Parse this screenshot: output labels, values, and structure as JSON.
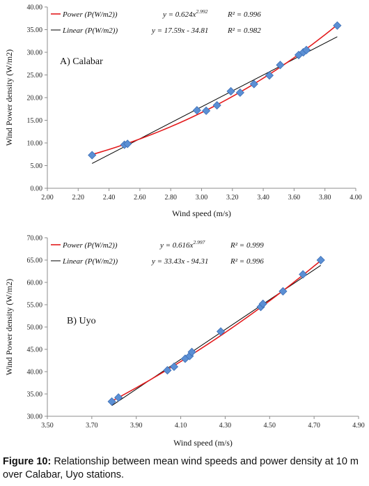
{
  "caption": {
    "label": "Figure 10:",
    "text": "Relationship between mean wind speeds and power density at 10 m over Calabar, Uyo stations."
  },
  "colors": {
    "power": "#e31a1c",
    "linear": "#000000",
    "marker": "#5b8fd4",
    "marker_stroke": "#3d6fb6",
    "axis": "#8c8c8c"
  },
  "chart_data": [
    {
      "type": "scatter",
      "panel_label": "A) Calabar",
      "xlabel": "Wind speed (m/s)",
      "ylabel": "Wind Power density (W/m2)",
      "xlim": [
        2.0,
        4.0
      ],
      "ylim": [
        0,
        40
      ],
      "xticks": [
        "2.00",
        "2.20",
        "2.40",
        "2.60",
        "2.80",
        "3.00",
        "3.20",
        "3.40",
        "3.60",
        "3.80",
        "4.00"
      ],
      "yticks": [
        "0.00",
        "5.00",
        "10.00",
        "15.00",
        "20.00",
        "25.00",
        "30.00",
        "35.00",
        "40.00"
      ],
      "points": [
        {
          "x": 2.29,
          "y": 7.3
        },
        {
          "x": 2.5,
          "y": 9.6
        },
        {
          "x": 2.52,
          "y": 9.8
        },
        {
          "x": 2.97,
          "y": 17.2
        },
        {
          "x": 3.03,
          "y": 17.1
        },
        {
          "x": 3.1,
          "y": 18.3
        },
        {
          "x": 3.19,
          "y": 21.4
        },
        {
          "x": 3.25,
          "y": 21.1
        },
        {
          "x": 3.34,
          "y": 23.0
        },
        {
          "x": 3.44,
          "y": 24.9
        },
        {
          "x": 3.51,
          "y": 27.2
        },
        {
          "x": 3.63,
          "y": 29.4
        },
        {
          "x": 3.66,
          "y": 30.0
        },
        {
          "x": 3.68,
          "y": 30.5
        },
        {
          "x": 3.88,
          "y": 35.9
        }
      ],
      "fit_range": [
        2.29,
        3.88
      ],
      "legend": [
        {
          "name": "Power (P(W/m2))",
          "equation": "y = 0.624x",
          "exponent": "2.992",
          "r2": "R² = 0.996"
        },
        {
          "name": "Linear (P(W/m2))",
          "equation": "y = 17.59x - 34.81",
          "r2": "R² = 0.982"
        }
      ],
      "power_fit": {
        "a": 0.624,
        "b": 2.992
      },
      "linear_fit": {
        "m": 17.59,
        "c": -34.81
      }
    },
    {
      "type": "scatter",
      "panel_label": "B) Uyo",
      "xlabel": "Wind speed (m/s)",
      "ylabel": "Wind Power density (W/m2)",
      "xlim": [
        3.5,
        4.9
      ],
      "ylim": [
        30,
        70
      ],
      "xticks": [
        "3.50",
        "3.70",
        "3.90",
        "4.10",
        "4.30",
        "4.50",
        "4.70",
        "4.90"
      ],
      "yticks": [
        "30.00",
        "35.00",
        "40.00",
        "45.00",
        "50.00",
        "55.00",
        "60.00",
        "65.00",
        "70.00"
      ],
      "points": [
        {
          "x": 3.79,
          "y": 33.3
        },
        {
          "x": 3.82,
          "y": 34.2
        },
        {
          "x": 4.04,
          "y": 40.3
        },
        {
          "x": 4.07,
          "y": 41.1
        },
        {
          "x": 4.12,
          "y": 42.9
        },
        {
          "x": 4.14,
          "y": 43.5
        },
        {
          "x": 4.15,
          "y": 44.4
        },
        {
          "x": 4.28,
          "y": 49.0
        },
        {
          "x": 4.46,
          "y": 54.5
        },
        {
          "x": 4.47,
          "y": 55.2
        },
        {
          "x": 4.56,
          "y": 58.0
        },
        {
          "x": 4.65,
          "y": 61.8
        },
        {
          "x": 4.73,
          "y": 65.0
        }
      ],
      "fit_range": [
        3.79,
        4.73
      ],
      "legend": [
        {
          "name": "Power (P(W/m2))",
          "equation": "y = 0.616x",
          "exponent": "2.997",
          "r2": "R² = 0.999"
        },
        {
          "name": "Linear (P(W/m2))",
          "equation": "y = 33.43x - 94.31",
          "r2": "R² = 0.996"
        }
      ],
      "power_fit": {
        "a": 0.616,
        "b": 2.997
      },
      "linear_fit": {
        "m": 33.43,
        "c": -94.31
      }
    }
  ]
}
